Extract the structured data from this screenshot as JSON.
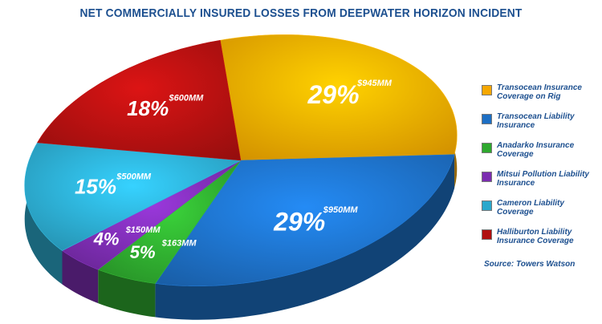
{
  "title": "NET COMMERCIALLY INSURED LOSSES FROM DEEPWATER HORIZON INCIDENT",
  "source": "Source: Towers Watson",
  "chart_data": {
    "type": "pie",
    "title": "NET COMMERCIALLY INSURED LOSSES FROM DEEPWATER HORIZON INCIDENT",
    "legend_position": "right",
    "slices": [
      {
        "label": "Transocean Insurance Coverage on Rig",
        "percent": 29,
        "percent_label": "29%",
        "amount_label": "$945MM",
        "color": "#f6a800"
      },
      {
        "label": "Transocean Liability Insurance",
        "percent": 29,
        "percent_label": "29%",
        "amount_label": "$950MM",
        "color": "#1d6fc4"
      },
      {
        "label": "Anadarko Insurance Coverage",
        "percent": 5,
        "percent_label": "5%",
        "amount_label": "$163MM",
        "color": "#2ea82e"
      },
      {
        "label": "Mitsui Pollution Liability Insurance",
        "percent": 4,
        "percent_label": "4%",
        "amount_label": "$150MM",
        "color": "#7b2db0"
      },
      {
        "label": "Cameron Liability Coverage",
        "percent": 15,
        "percent_label": "15%",
        "amount_label": "$500MM",
        "color": "#2ba8cc"
      },
      {
        "label": "Halliburton Liability Insurance Coverage",
        "percent": 18,
        "percent_label": "18%",
        "amount_label": "$600MM",
        "color": "#b01010"
      }
    ]
  }
}
